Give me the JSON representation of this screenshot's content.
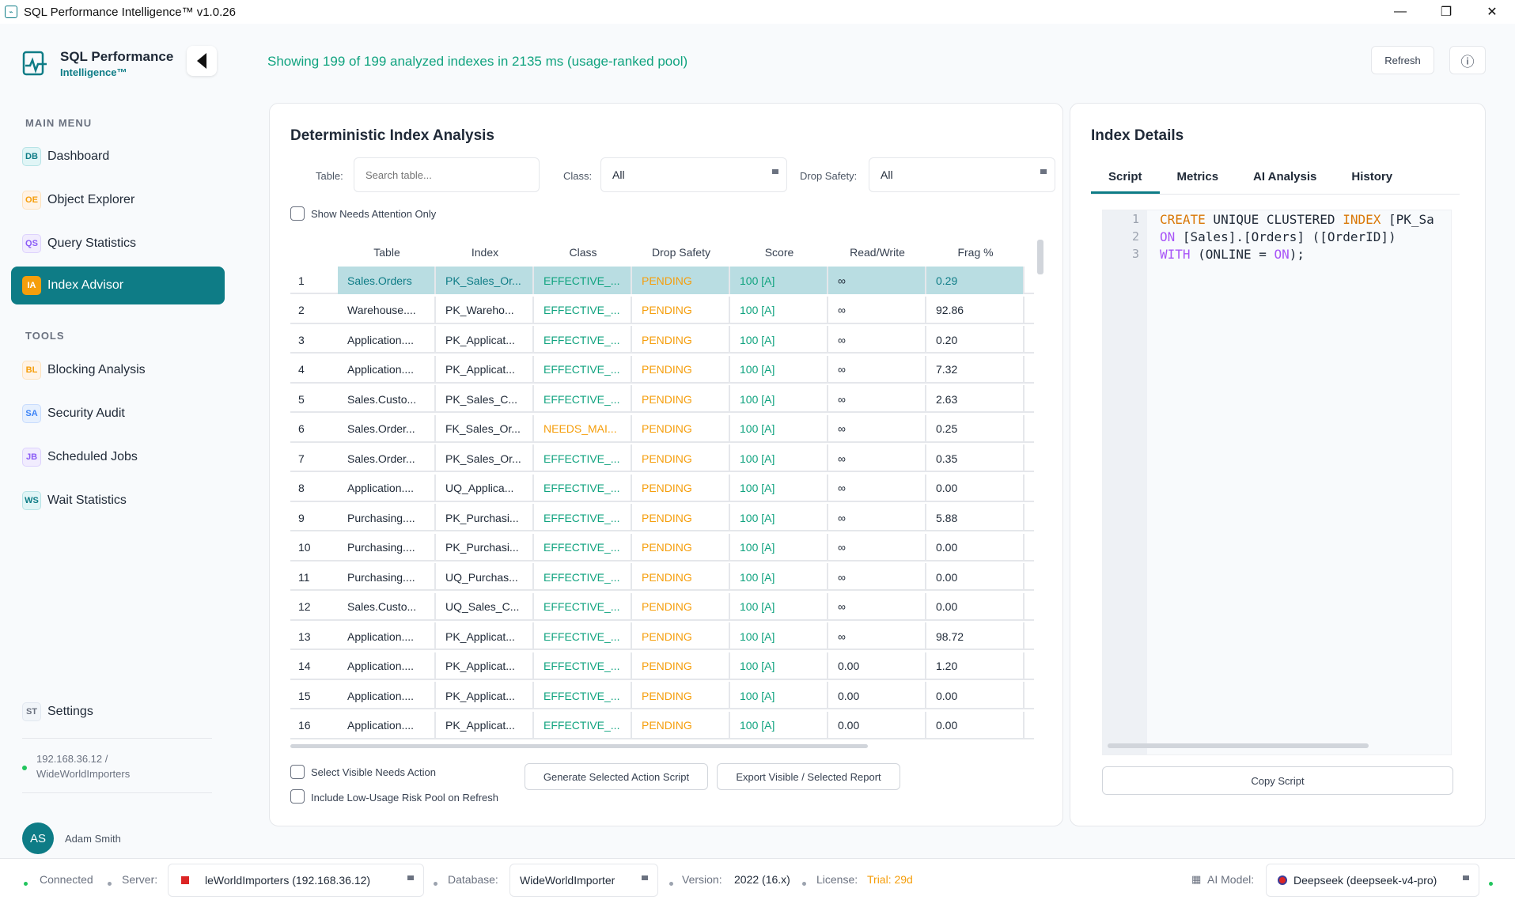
{
  "window": {
    "title": "SQL Performance Intelligence™ v1.0.26",
    "minimize": "—",
    "maximize": "❐",
    "close": "✕"
  },
  "sidebar": {
    "brand_name": "SQL Performance",
    "brand_sub": "Intelligence™",
    "main_menu_label": "MAIN MENU",
    "tools_label": "TOOLS",
    "main_items": [
      {
        "badge": "DB",
        "label": "Dashboard"
      },
      {
        "badge": "OE",
        "label": "Object Explorer"
      },
      {
        "badge": "QS",
        "label": "Query Statistics"
      },
      {
        "badge": "IA",
        "label": "Index Advisor"
      }
    ],
    "tool_items": [
      {
        "badge": "BL",
        "label": "Blocking Analysis"
      },
      {
        "badge": "SA",
        "label": "Security Audit"
      },
      {
        "badge": "JB",
        "label": "Scheduled Jobs"
      },
      {
        "badge": "WS",
        "label": "Wait Statistics"
      }
    ],
    "settings": {
      "badge": "ST",
      "label": "Settings"
    },
    "connection_line1": "192.168.36.12 /",
    "connection_line2": "WideWorldImporters",
    "user_initials": "AS",
    "user_name": "Adam Smith"
  },
  "header": {
    "summary": "Showing 199 of 199 analyzed indexes in 2135 ms (usage-ranked pool)",
    "refresh_label": "Refresh",
    "info_icon": "ⓘ"
  },
  "analysis": {
    "title": "Deterministic Index Analysis",
    "table_label": "Table:",
    "table_placeholder": "Search table...",
    "class_label": "Class:",
    "class_value": "All",
    "drop_label": "Drop Safety:",
    "drop_value": "All",
    "needs_attention_label": "Show Needs Attention Only",
    "columns": [
      "Table",
      "Index",
      "Class",
      "Drop Safety",
      "Score",
      "Read/Write",
      "Frag %"
    ],
    "rows": [
      [
        "1",
        "Sales.Orders",
        "PK_Sales_Or...",
        "EFFECTIVE_...",
        "PENDING",
        "100 [A]",
        "∞",
        "0.29"
      ],
      [
        "2",
        "Warehouse....",
        "PK_Wareho...",
        "EFFECTIVE_...",
        "PENDING",
        "100 [A]",
        "∞",
        "92.86"
      ],
      [
        "3",
        "Application....",
        "PK_Applicat...",
        "EFFECTIVE_...",
        "PENDING",
        "100 [A]",
        "∞",
        "0.20"
      ],
      [
        "4",
        "Application....",
        "PK_Applicat...",
        "EFFECTIVE_...",
        "PENDING",
        "100 [A]",
        "∞",
        "7.32"
      ],
      [
        "5",
        "Sales.Custo...",
        "PK_Sales_C...",
        "EFFECTIVE_...",
        "PENDING",
        "100 [A]",
        "∞",
        "2.63"
      ],
      [
        "6",
        "Sales.Order...",
        "FK_Sales_Or...",
        "NEEDS_MAI...",
        "PENDING",
        "100 [A]",
        "∞",
        "0.25"
      ],
      [
        "7",
        "Sales.Order...",
        "PK_Sales_Or...",
        "EFFECTIVE_...",
        "PENDING",
        "100 [A]",
        "∞",
        "0.35"
      ],
      [
        "8",
        "Application....",
        "UQ_Applica...",
        "EFFECTIVE_...",
        "PENDING",
        "100 [A]",
        "∞",
        "0.00"
      ],
      [
        "9",
        "Purchasing....",
        "PK_Purchasi...",
        "EFFECTIVE_...",
        "PENDING",
        "100 [A]",
        "∞",
        "5.88"
      ],
      [
        "10",
        "Purchasing....",
        "PK_Purchasi...",
        "EFFECTIVE_...",
        "PENDING",
        "100 [A]",
        "∞",
        "0.00"
      ],
      [
        "11",
        "Purchasing....",
        "UQ_Purchas...",
        "EFFECTIVE_...",
        "PENDING",
        "100 [A]",
        "∞",
        "0.00"
      ],
      [
        "12",
        "Sales.Custo...",
        "UQ_Sales_C...",
        "EFFECTIVE_...",
        "PENDING",
        "100 [A]",
        "∞",
        "0.00"
      ],
      [
        "13",
        "Application....",
        "PK_Applicat...",
        "EFFECTIVE_...",
        "PENDING",
        "100 [A]",
        "∞",
        "98.72"
      ],
      [
        "14",
        "Application....",
        "PK_Applicat...",
        "EFFECTIVE_...",
        "PENDING",
        "100 [A]",
        "0.00",
        "1.20"
      ],
      [
        "15",
        "Application....",
        "PK_Applicat...",
        "EFFECTIVE_...",
        "PENDING",
        "100 [A]",
        "0.00",
        "0.00"
      ],
      [
        "16",
        "Application....",
        "PK_Applicat...",
        "EFFECTIVE_...",
        "PENDING",
        "100 [A]",
        "0.00",
        "0.00"
      ]
    ],
    "select_visible_label": "Select Visible Needs Action",
    "include_low_usage_label": "Include Low-Usage Risk Pool on Refresh",
    "generate_btn": "Generate Selected Action Script",
    "export_btn": "Export Visible / Selected Report"
  },
  "details": {
    "title": "Index Details",
    "tabs": [
      "Script",
      "Metrics",
      "AI Analysis",
      "History"
    ],
    "line_numbers": [
      "1",
      "2",
      "3"
    ],
    "copy_btn": "Copy Script"
  },
  "statusbar": {
    "connected": "Connected",
    "server_label": "Server:",
    "server_value": "leWorldImporters (192.168.36.12)",
    "database_label": "Database:",
    "database_value": "WideWorldImporter",
    "version_label": "Version:",
    "version_value": "2022 (16.x)",
    "license_label": "License:",
    "license_value": "Trial: 29d",
    "ai_label": "AI Model:",
    "ai_value": "Deepseek (deepseek-v4-pro)"
  },
  "colors": {
    "accent": "#0e7c86",
    "success": "#10a37f",
    "warning": "#f59e0b"
  }
}
